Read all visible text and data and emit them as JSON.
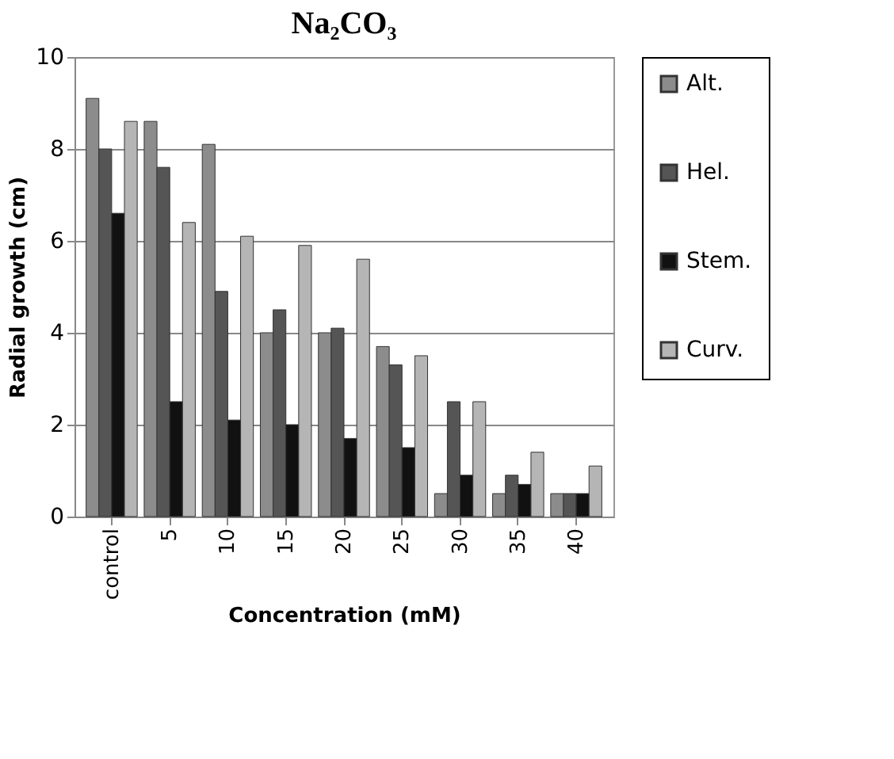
{
  "chart_data": {
    "type": "bar",
    "title": "Na₂CO₃",
    "xlabel": "Concentration (mM)",
    "ylabel": "Radial growth (cm)",
    "categories": [
      "control",
      "5",
      "10",
      "15",
      "20",
      "25",
      "30",
      "35",
      "40"
    ],
    "series": [
      {
        "name": "Alt.",
        "color": "#8c8c8c",
        "values": [
          9.1,
          8.6,
          8.1,
          4.0,
          4.0,
          3.7,
          0.5,
          0.5,
          0.5
        ]
      },
      {
        "name": "Hel.",
        "color": "#555555",
        "values": [
          8.0,
          7.6,
          4.9,
          4.5,
          4.1,
          3.3,
          2.5,
          0.9,
          0.5
        ]
      },
      {
        "name": "Stem.",
        "color": "#111111",
        "values": [
          6.6,
          2.5,
          2.1,
          2.0,
          1.7,
          1.5,
          0.9,
          0.7,
          0.5
        ]
      },
      {
        "name": "Curv.",
        "color": "#b5b5b5",
        "values": [
          8.6,
          6.4,
          6.1,
          5.9,
          5.6,
          3.5,
          2.5,
          1.4,
          1.1
        ]
      }
    ],
    "ylim": [
      0,
      10
    ],
    "yticks": [
      0,
      2,
      4,
      6,
      8,
      10
    ],
    "grid": "y",
    "legend": "right"
  }
}
